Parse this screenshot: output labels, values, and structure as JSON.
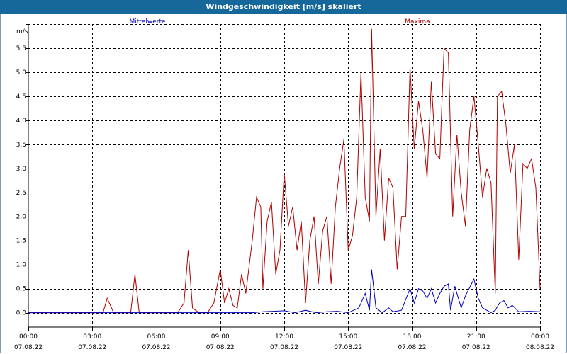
{
  "window": {
    "title": "Windgeschwindigkeit [m/s] skaliert"
  },
  "colors": {
    "mean": "#0000c0",
    "max": "#b00000",
    "title_bg": "#16679a"
  },
  "chart_data": {
    "type": "line",
    "title": "Windgeschwindigkeit [m/s] skaliert",
    "ylabel": "m/s",
    "ylim": [
      -0.3,
      6.0
    ],
    "xlim": [
      0,
      24
    ],
    "y_ticks": [
      0.0,
      0.5,
      1.0,
      1.5,
      2.0,
      2.5,
      3.0,
      3.5,
      4.0,
      4.5,
      5.0,
      5.5
    ],
    "y_tick_labels": [
      "0.0",
      "0.5",
      "1.0",
      "1.5",
      "2.0",
      "2.5",
      "3.0",
      "3.5",
      "4.0",
      "4.5",
      "5.0",
      "5.5"
    ],
    "x_ticks": [
      {
        "h": 0,
        "time": "00:00",
        "date": "07.08.22"
      },
      {
        "h": 3,
        "time": "03:00",
        "date": "07.08.22"
      },
      {
        "h": 6,
        "time": "06:00",
        "date": "07.08.22"
      },
      {
        "h": 9,
        "time": "09:00",
        "date": "07.08.22"
      },
      {
        "h": 12,
        "time": "12:00",
        "date": "07.08.22"
      },
      {
        "h": 15,
        "time": "15:00",
        "date": "07.08.22"
      },
      {
        "h": 18,
        "time": "18:00",
        "date": "07.08.22"
      },
      {
        "h": 21,
        "time": "21:00",
        "date": "07.08.22"
      },
      {
        "h": 24,
        "time": "00:00",
        "date": "08.08.22"
      }
    ],
    "series": [
      {
        "name": "Maxima",
        "color": "#b00000",
        "points": [
          [
            0,
            0
          ],
          [
            3.5,
            0
          ],
          [
            3.7,
            0.3
          ],
          [
            4.0,
            0
          ],
          [
            4.8,
            0
          ],
          [
            5.0,
            0.8
          ],
          [
            5.2,
            0
          ],
          [
            7.0,
            0
          ],
          [
            7.3,
            0.2
          ],
          [
            7.5,
            1.3
          ],
          [
            7.7,
            0.1
          ],
          [
            8.0,
            0
          ],
          [
            8.4,
            0
          ],
          [
            8.7,
            0.2
          ],
          [
            9.0,
            0.9
          ],
          [
            9.2,
            0.2
          ],
          [
            9.4,
            0.5
          ],
          [
            9.6,
            0.15
          ],
          [
            9.8,
            0.1
          ],
          [
            10.0,
            0.8
          ],
          [
            10.2,
            0.4
          ],
          [
            10.5,
            1.5
          ],
          [
            10.7,
            2.4
          ],
          [
            10.9,
            2.2
          ],
          [
            11.0,
            0.5
          ],
          [
            11.2,
            1.9
          ],
          [
            11.4,
            2.3
          ],
          [
            11.6,
            0.8
          ],
          [
            11.8,
            1.3
          ],
          [
            12.0,
            2.9
          ],
          [
            12.2,
            1.8
          ],
          [
            12.4,
            2.2
          ],
          [
            12.6,
            1.3
          ],
          [
            12.8,
            1.9
          ],
          [
            13.0,
            0.2
          ],
          [
            13.2,
            1.5
          ],
          [
            13.4,
            2.0
          ],
          [
            13.6,
            0.6
          ],
          [
            13.8,
            1.7
          ],
          [
            14.0,
            2.0
          ],
          [
            14.2,
            0.6
          ],
          [
            14.4,
            2.2
          ],
          [
            14.6,
            3.0
          ],
          [
            14.8,
            3.6
          ],
          [
            15.0,
            1.3
          ],
          [
            15.2,
            1.6
          ],
          [
            15.4,
            2.4
          ],
          [
            15.6,
            5.0
          ],
          [
            15.8,
            2.4
          ],
          [
            16.0,
            1.9
          ],
          [
            16.1,
            5.9
          ],
          [
            16.3,
            2.0
          ],
          [
            16.5,
            3.4
          ],
          [
            16.7,
            1.5
          ],
          [
            16.9,
            2.8
          ],
          [
            17.1,
            2.6
          ],
          [
            17.3,
            0.9
          ],
          [
            17.5,
            2.0
          ],
          [
            17.7,
            2.0
          ],
          [
            17.9,
            5.1
          ],
          [
            18.1,
            3.4
          ],
          [
            18.3,
            4.4
          ],
          [
            18.5,
            3.8
          ],
          [
            18.7,
            2.8
          ],
          [
            18.9,
            4.8
          ],
          [
            19.1,
            3.3
          ],
          [
            19.3,
            3.2
          ],
          [
            19.4,
            4.4
          ],
          [
            19.5,
            5.5
          ],
          [
            19.7,
            5.4
          ],
          [
            19.9,
            2.0
          ],
          [
            20.1,
            3.7
          ],
          [
            20.3,
            2.5
          ],
          [
            20.5,
            1.8
          ],
          [
            20.7,
            3.8
          ],
          [
            20.9,
            4.5
          ],
          [
            21.1,
            3.5
          ],
          [
            21.3,
            2.4
          ],
          [
            21.5,
            3.0
          ],
          [
            21.7,
            2.7
          ],
          [
            21.9,
            0.4
          ],
          [
            22.0,
            4.5
          ],
          [
            22.2,
            4.6
          ],
          [
            22.4,
            3.9
          ],
          [
            22.6,
            2.9
          ],
          [
            22.8,
            3.5
          ],
          [
            23.0,
            1.1
          ],
          [
            23.2,
            3.1
          ],
          [
            23.4,
            3.0
          ],
          [
            23.6,
            3.2
          ],
          [
            23.8,
            2.6
          ],
          [
            24.0,
            0.5
          ]
        ]
      },
      {
        "name": "Mittelwerte",
        "color": "#0000c0",
        "points": [
          [
            0,
            0
          ],
          [
            10.5,
            0
          ],
          [
            11.0,
            0.02
          ],
          [
            12.0,
            0.04
          ],
          [
            12.5,
            0.0
          ],
          [
            13.0,
            0.05
          ],
          [
            13.5,
            0.0
          ],
          [
            14.0,
            0.02
          ],
          [
            14.5,
            0.03
          ],
          [
            15.0,
            0.0
          ],
          [
            15.5,
            0.1
          ],
          [
            15.8,
            0.4
          ],
          [
            16.0,
            0.05
          ],
          [
            16.1,
            0.9
          ],
          [
            16.3,
            0.1
          ],
          [
            16.6,
            0.0
          ],
          [
            16.9,
            0.1
          ],
          [
            17.1,
            0.02
          ],
          [
            17.5,
            0.05
          ],
          [
            17.9,
            0.5
          ],
          [
            18.1,
            0.2
          ],
          [
            18.3,
            0.5
          ],
          [
            18.5,
            0.45
          ],
          [
            18.7,
            0.3
          ],
          [
            18.9,
            0.5
          ],
          [
            19.1,
            0.2
          ],
          [
            19.3,
            0.4
          ],
          [
            19.5,
            0.55
          ],
          [
            19.7,
            0.6
          ],
          [
            19.8,
            0.05
          ],
          [
            20.0,
            0.55
          ],
          [
            20.3,
            0.1
          ],
          [
            20.5,
            0.35
          ],
          [
            20.9,
            0.7
          ],
          [
            21.1,
            0.3
          ],
          [
            21.3,
            0.1
          ],
          [
            21.5,
            0.05
          ],
          [
            21.7,
            0.0
          ],
          [
            21.9,
            0.05
          ],
          [
            22.1,
            0.2
          ],
          [
            22.3,
            0.25
          ],
          [
            22.5,
            0.1
          ],
          [
            22.7,
            0.15
          ],
          [
            23.0,
            0.02
          ],
          [
            23.5,
            0.03
          ],
          [
            24.0,
            0.02
          ]
        ]
      }
    ]
  }
}
